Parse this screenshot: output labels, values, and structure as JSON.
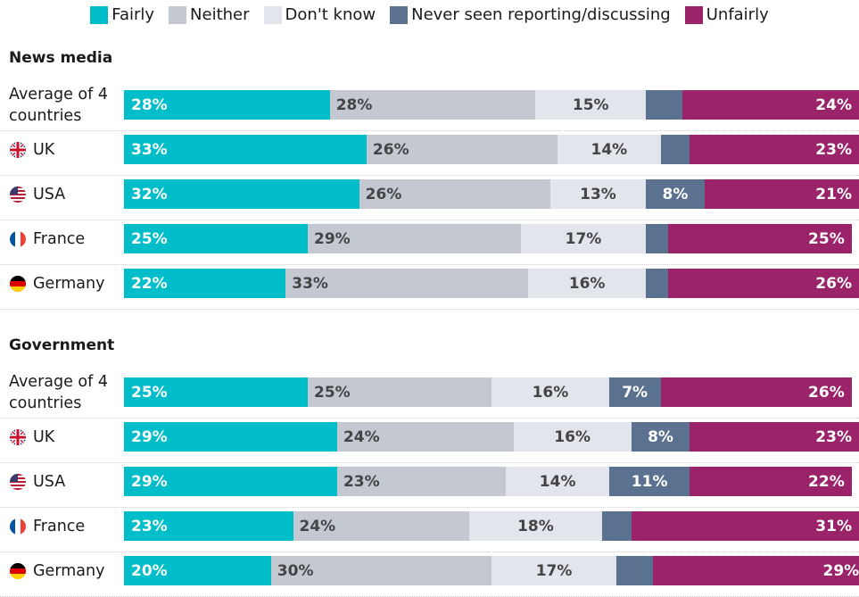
{
  "chart_data": {
    "type": "stacked-bar",
    "orientation": "horizontal",
    "xlim": [
      0,
      100
    ],
    "series": [
      {
        "name": "Fairly",
        "color": "#00bdca"
      },
      {
        "name": "Neither",
        "color": "#c3c8d1"
      },
      {
        "name": "Don't know",
        "color": "#e3e5ec"
      },
      {
        "name": "Never seen reporting/discussing",
        "color": "#5b7190"
      },
      {
        "name": "Unfairly",
        "color": "#9b236a"
      }
    ],
    "panels": [
      {
        "title": "News media",
        "categories": [
          "Average of 4 countries",
          "UK",
          "USA",
          "France",
          "Germany"
        ],
        "series": [
          {
            "values": [
              28,
              33,
              32,
              25,
              22
            ],
            "value_labels": [
              "28%",
              "33%",
              "32%",
              "25%",
              "22%"
            ]
          },
          {
            "values": [
              28,
              26,
              26,
              29,
              33
            ],
            "value_labels": [
              "28%",
              "26%",
              "26%",
              "29%",
              "33%"
            ]
          },
          {
            "values": [
              15,
              14,
              13,
              17,
              16
            ],
            "value_labels": [
              "15%",
              "14%",
              "13%",
              "17%",
              "16%"
            ]
          },
          {
            "values": [
              5,
              4,
              8,
              3,
              3
            ],
            "value_labels": [
              null,
              null,
              "8%",
              null,
              null
            ]
          },
          {
            "values": [
              24,
              23,
              21,
              25,
              26
            ],
            "value_labels": [
              "24%",
              "23%",
              "21%",
              "25%",
              "26%"
            ]
          }
        ]
      },
      {
        "title": "Government",
        "categories": [
          "Average of 4 countries",
          "UK",
          "USA",
          "France",
          "Germany"
        ],
        "series": [
          {
            "values": [
              25,
              29,
              29,
              23,
              20
            ],
            "value_labels": [
              "25%",
              "29%",
              "29%",
              "23%",
              "20%"
            ]
          },
          {
            "values": [
              25,
              24,
              23,
              24,
              30
            ],
            "value_labels": [
              "25%",
              "24%",
              "23%",
              "24%",
              "30%"
            ]
          },
          {
            "values": [
              16,
              16,
              14,
              18,
              17
            ],
            "value_labels": [
              "16%",
              "16%",
              "14%",
              "18%",
              "17%"
            ]
          },
          {
            "values": [
              7,
              8,
              11,
              4,
              5
            ],
            "value_labels": [
              "7%",
              "8%",
              "11%",
              null,
              null
            ]
          },
          {
            "values": [
              26,
              23,
              22,
              31,
              29
            ],
            "value_labels": [
              "26%",
              "23%",
              "22%",
              "31%",
              "29%"
            ]
          }
        ]
      }
    ]
  }
}
